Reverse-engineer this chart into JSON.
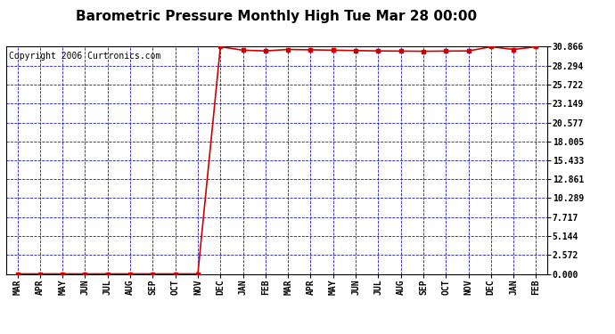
{
  "title": "Barometric Pressure Monthly High Tue Mar 28 00:00",
  "copyright": "Copyright 2006 Curtronics.com",
  "x_labels": [
    "MAR",
    "APR",
    "MAY",
    "JUN",
    "JUL",
    "AUG",
    "SEP",
    "OCT",
    "NOV",
    "DEC",
    "JAN",
    "FEB",
    "MAR",
    "APR",
    "MAY",
    "JUN",
    "JUL",
    "AUG",
    "SEP",
    "OCT",
    "NOV",
    "DEC",
    "JAN",
    "FEB"
  ],
  "y_values": [
    0.0,
    0.0,
    0.0,
    0.0,
    0.0,
    0.0,
    0.0,
    0.0,
    0.0,
    30.866,
    30.4,
    30.3,
    30.5,
    30.45,
    30.4,
    30.35,
    30.3,
    30.28,
    30.25,
    30.28,
    30.3,
    30.866,
    30.5,
    30.866
  ],
  "yticks": [
    0.0,
    2.572,
    5.144,
    7.717,
    10.289,
    12.861,
    15.433,
    18.005,
    20.577,
    23.149,
    25.722,
    28.294,
    30.866
  ],
  "ylim": [
    0.0,
    30.866
  ],
  "line_color": "#cc0000",
  "marker": "s",
  "marker_size": 2.5,
  "bg_color": "#ffffff",
  "grid_color": "#0000bb",
  "axis_color": "#000000",
  "title_fontsize": 11,
  "copyright_fontsize": 7,
  "tick_fontsize": 7
}
